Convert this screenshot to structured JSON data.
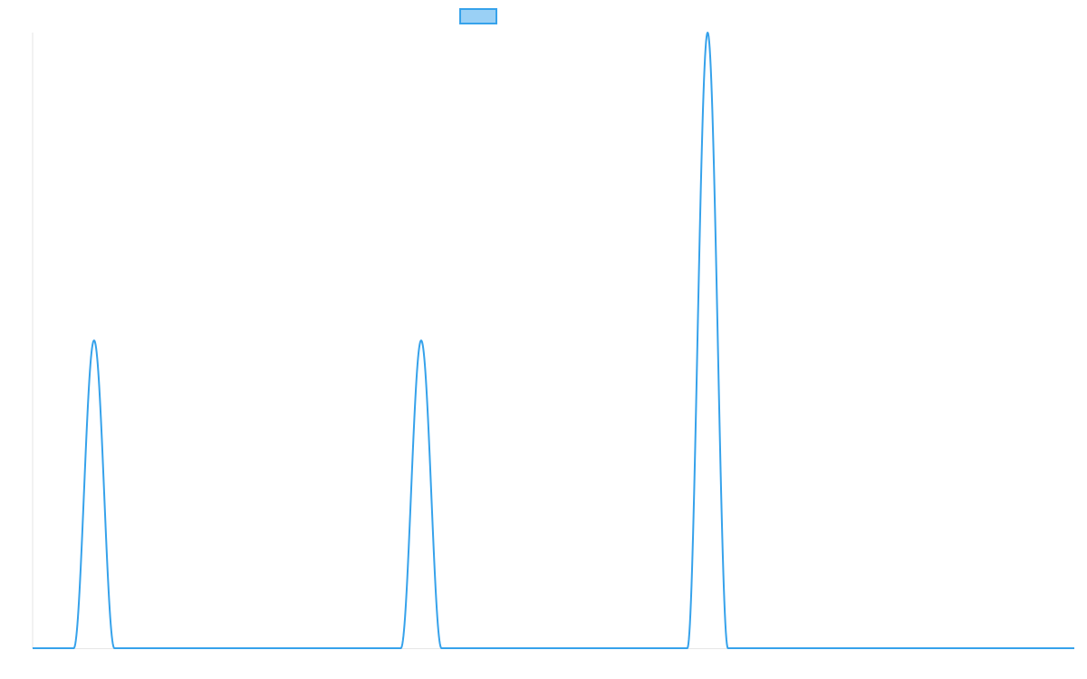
{
  "chart_data": {
    "type": "line",
    "title": "",
    "xlabel": "",
    "ylabel": "",
    "grid": false,
    "legend_placement": "top-center",
    "x_range": [
      0,
      1
    ],
    "ylim": [
      0,
      1
    ],
    "series": [
      {
        "name": "",
        "color": "#36A2EB",
        "fill_color": "#9AD0F5",
        "peaks": [
          {
            "center": 0.059,
            "height": 0.5,
            "half_width": 0.0195
          },
          {
            "center": 0.373,
            "height": 0.5,
            "half_width": 0.0195
          },
          {
            "center": 0.648,
            "height": 1.0,
            "half_width": 0.0195
          }
        ]
      }
    ]
  }
}
